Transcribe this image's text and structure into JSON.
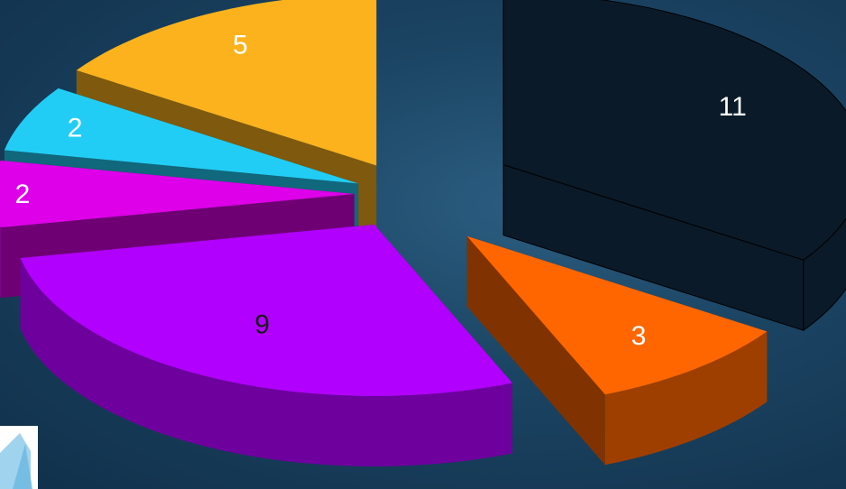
{
  "chart_data": {
    "type": "pie",
    "style": "3d-exploded",
    "title": "",
    "values": [
      11,
      3,
      9,
      2,
      2,
      5
    ],
    "slices": [
      {
        "value": 11,
        "label": "11",
        "color": "#0b1a28",
        "outline": "#000000",
        "label_color": "#ffffff"
      },
      {
        "value": 3,
        "label": "3",
        "color": "#ff6600",
        "label_color": "#ffffff"
      },
      {
        "value": 9,
        "label": "9",
        "color": "#b200ff",
        "label_color": "#1a1a1a"
      },
      {
        "value": 2,
        "label": "2",
        "color": "#dd00e8",
        "label_color": "#ffffff"
      },
      {
        "value": 2,
        "label": "2",
        "color": "#22cdf5",
        "label_color": "#ffffff"
      },
      {
        "value": 5,
        "label": "5",
        "color": "#fbb21c",
        "label_color": "#ffffff"
      }
    ],
    "legend": "none"
  },
  "background": {
    "color": "#1b4463"
  },
  "logo": {
    "icon": "mountain-logo-icon",
    "color": "#9fd3ee"
  }
}
